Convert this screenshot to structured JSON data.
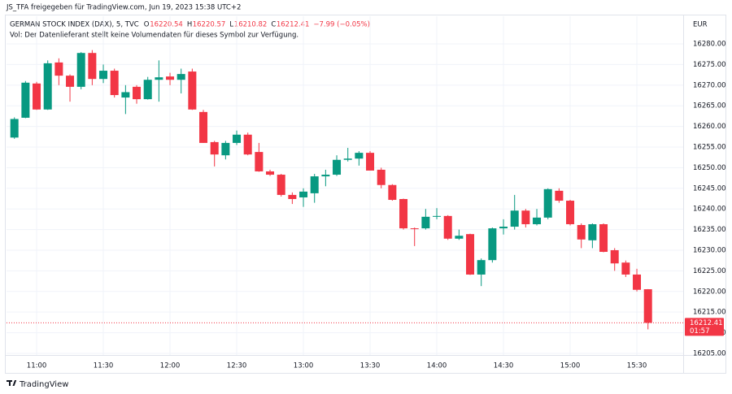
{
  "header": {
    "share_text": "JS_TFA freigegeben für TradingView.com, Jun 19, 2023 15:38 UTC+2",
    "symbol": "GERMAN STOCK INDEX (DAX), 5, TVC",
    "o_label": "O",
    "o_value": "16220.54",
    "h_label": "H",
    "h_value": "16220.57",
    "l_label": "L",
    "l_value": "16210.82",
    "c_label": "C",
    "c_value": "16212.41",
    "change": "−7.99 (−0.05%)",
    "volume_note": "Vol: Der Datenlieferant stellt keine Volumendaten für dieses Symbol zur Verfügung.",
    "currency": "EUR"
  },
  "footer": {
    "brand": "TradingView"
  },
  "chart_data": {
    "type": "candlestick",
    "x": [
      "10:50",
      "10:55",
      "11:00",
      "11:05",
      "11:10",
      "11:15",
      "11:20",
      "11:25",
      "11:30",
      "11:35",
      "11:40",
      "11:45",
      "11:50",
      "11:55",
      "12:00",
      "12:05",
      "12:10",
      "12:15",
      "12:20",
      "12:25",
      "12:30",
      "12:35",
      "12:40",
      "12:45",
      "12:50",
      "12:55",
      "13:00",
      "13:05",
      "13:10",
      "13:15",
      "13:20",
      "13:25",
      "13:30",
      "13:35",
      "13:40",
      "13:45",
      "13:50",
      "13:55",
      "14:00",
      "14:05",
      "14:10",
      "14:15",
      "14:20",
      "14:25",
      "14:30",
      "14:35",
      "14:40",
      "14:45",
      "14:50",
      "14:55",
      "15:00",
      "15:05",
      "15:10",
      "15:15",
      "15:20",
      "15:25",
      "15:30",
      "15:35"
    ],
    "open": [
      16257.3,
      16262.1,
      16270.4,
      16264.1,
      16275.5,
      16272.3,
      16269.6,
      16277.8,
      16271.5,
      16273.5,
      16267.0,
      16269.6,
      16266.6,
      16271.3,
      16272.1,
      16271.3,
      16273.3,
      16263.5,
      16256.2,
      16253.0,
      16256.0,
      16258.0,
      16253.8,
      16249.1,
      16248.3,
      16243.4,
      16242.8,
      16243.8,
      16247.9,
      16248.3,
      16251.9,
      16252.2,
      16253.6,
      16249.5,
      16245.8,
      16242.4,
      16235.3,
      16235.3,
      16238.1,
      16238.3,
      16232.8,
      16233.9,
      16224.1,
      16227.6,
      16235.3,
      16235.7,
      16239.6,
      16236.3,
      16237.9,
      16244.4,
      16242.0,
      16236.1,
      16232.4,
      16236.3,
      16230.0,
      16227.0,
      16224.1,
      16220.54
    ],
    "high": [
      16262.2,
      16271.0,
      16270.8,
      16276.0,
      16276.5,
      16272.6,
      16278.0,
      16278.5,
      16275.0,
      16274.0,
      16270.0,
      16270.0,
      16272.0,
      16276.0,
      16273.0,
      16274.0,
      16274.0,
      16264.0,
      16256.5,
      16256.5,
      16259.0,
      16258.5,
      16256.0,
      16249.5,
      16248.5,
      16244.0,
      16245.0,
      16248.5,
      16249.5,
      16253.0,
      16254.8,
      16254.0,
      16254.0,
      16250.0,
      16246.0,
      16242.5,
      16235.5,
      16240.0,
      16240.2,
      16238.5,
      16235.0,
      16234.0,
      16228.0,
      16235.5,
      16237.5,
      16243.4,
      16240.0,
      16240.0,
      16245.0,
      16245.0,
      16242.2,
      16236.5,
      16236.5,
      16236.5,
      16230.5,
      16227.5,
      16225.5,
      16220.57
    ],
    "low": [
      16257.0,
      16262.0,
      16264.0,
      16264.0,
      16270.0,
      16266.0,
      16269.0,
      16270.0,
      16270.5,
      16267.0,
      16263.0,
      16265.5,
      16266.5,
      16266.0,
      16270.0,
      16268.0,
      16264.0,
      16256.0,
      16250.3,
      16252.0,
      16255.5,
      16253.0,
      16249.0,
      16248.0,
      16243.0,
      16241.2,
      16240.5,
      16241.5,
      16245.5,
      16248.0,
      16251.5,
      16250.5,
      16249.3,
      16245.0,
      16242.0,
      16235.0,
      16231.0,
      16235.0,
      16237.5,
      16232.5,
      16232.5,
      16224.0,
      16221.3,
      16227.0,
      16233.8,
      16235.0,
      16235.5,
      16236.0,
      16237.5,
      16241.5,
      16236.0,
      16230.5,
      16230.5,
      16229.5,
      16225.0,
      16223.5,
      16220.0,
      16210.82
    ],
    "close": [
      16261.8,
      16270.6,
      16264.1,
      16275.3,
      16272.3,
      16269.6,
      16277.8,
      16271.5,
      16273.5,
      16267.6,
      16268.3,
      16266.6,
      16271.3,
      16271.9,
      16271.3,
      16272.7,
      16264.1,
      16256.0,
      16253.2,
      16256.0,
      16258.0,
      16253.2,
      16249.1,
      16248.3,
      16243.4,
      16242.4,
      16244.2,
      16247.9,
      16248.3,
      16251.9,
      16252.2,
      16253.6,
      16249.3,
      16245.8,
      16242.2,
      16235.3,
      16235.1,
      16238.1,
      16238.3,
      16232.8,
      16233.5,
      16224.1,
      16227.6,
      16235.3,
      16235.7,
      16239.6,
      16236.3,
      16237.9,
      16244.8,
      16242.0,
      16236.3,
      16232.6,
      16236.3,
      16229.6,
      16226.8,
      16224.1,
      16220.4,
      16212.41
    ],
    "up_color": "#089981",
    "down_color": "#f23645",
    "ylim": [
      16204.6,
      16286.7
    ],
    "yticks": [
      {
        "value": 16205,
        "label": "16205.00"
      },
      {
        "value": 16210,
        "label": "16210.00"
      },
      {
        "value": 16215,
        "label": "16215.00"
      },
      {
        "value": 16220,
        "label": "16220.00"
      },
      {
        "value": 16225,
        "label": "16225.00"
      },
      {
        "value": 16230,
        "label": "16230.00"
      },
      {
        "value": 16235,
        "label": "16235.00"
      },
      {
        "value": 16240,
        "label": "16240.00"
      },
      {
        "value": 16245,
        "label": "16245.00"
      },
      {
        "value": 16250,
        "label": "16250.00"
      },
      {
        "value": 16255,
        "label": "16255.00"
      },
      {
        "value": 16260,
        "label": "16260.00"
      },
      {
        "value": 16265,
        "label": "16265.00"
      },
      {
        "value": 16270,
        "label": "16270.00"
      },
      {
        "value": 16275,
        "label": "16275.00"
      },
      {
        "value": 16280,
        "label": "16280.00"
      }
    ],
    "xticks": [
      "11:00",
      "11:30",
      "12:00",
      "12:30",
      "13:00",
      "13:30",
      "14:00",
      "14:30",
      "15:00",
      "15:30"
    ],
    "grid": true,
    "last_price": 16212.41,
    "countdown": "01:57"
  }
}
